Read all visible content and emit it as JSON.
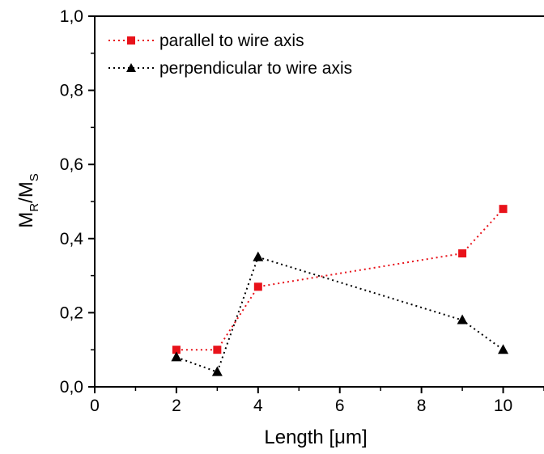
{
  "chart_data": {
    "type": "line",
    "xlabel": "Length  [μm]",
    "ylabel": {
      "main": "M",
      "sub1": "R",
      "slash": "/M",
      "sub2": "S"
    },
    "xlim": [
      0,
      11
    ],
    "ylim": [
      0,
      1.0
    ],
    "xticks": [
      {
        "value": 0,
        "label": "0"
      },
      {
        "value": 2,
        "label": "2"
      },
      {
        "value": 4,
        "label": "4"
      },
      {
        "value": 6,
        "label": "6"
      },
      {
        "value": 8,
        "label": "8"
      },
      {
        "value": 10,
        "label": "10"
      }
    ],
    "yticks": [
      {
        "value": 0.0,
        "label": "0,0"
      },
      {
        "value": 0.2,
        "label": "0,2"
      },
      {
        "value": 0.4,
        "label": "0,4"
      },
      {
        "value": 0.6,
        "label": "0,6"
      },
      {
        "value": 0.8,
        "label": "0,8"
      },
      {
        "value": 1.0,
        "label": "1,0"
      }
    ],
    "legend_position": "top-left",
    "grid": false,
    "series": [
      {
        "name": "parallel to wire axis",
        "color": "#e8121a",
        "marker": "square",
        "line": "dotted",
        "x": [
          2,
          3,
          4,
          9,
          10
        ],
        "y": [
          0.1,
          0.1,
          0.27,
          0.36,
          0.48
        ]
      },
      {
        "name": "perpendicular to wire axis",
        "color": "#000000",
        "marker": "triangle",
        "line": "dotted",
        "x": [
          2,
          3,
          4,
          9,
          10
        ],
        "y": [
          0.08,
          0.04,
          0.35,
          0.18,
          0.1
        ]
      }
    ]
  }
}
